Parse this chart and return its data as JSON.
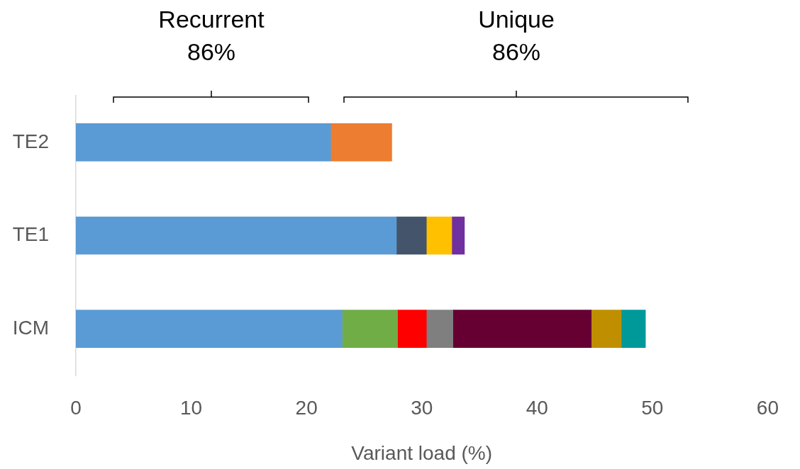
{
  "chart_data": {
    "type": "bar",
    "orientation": "horizontal",
    "stacked": true,
    "xlabel": "Variant load (%)",
    "categories": [
      "TE2",
      "TE1",
      "ICM"
    ],
    "series": [
      {
        "color": "#5b9bd5",
        "values": [
          22.1,
          27.8,
          23.1
        ]
      },
      {
        "color": "#ed7d31",
        "values": [
          5.3,
          null,
          null
        ]
      },
      {
        "color": "#44546a",
        "values": [
          null,
          2.6,
          null
        ]
      },
      {
        "color": "#ffc000",
        "values": [
          null,
          2.2,
          null
        ]
      },
      {
        "color": "#7030a0",
        "values": [
          null,
          1.1,
          null
        ]
      },
      {
        "color": "#70ad47",
        "values": [
          null,
          null,
          4.8
        ]
      },
      {
        "color": "#ff0000",
        "values": [
          null,
          null,
          2.5
        ]
      },
      {
        "color": "#7f7f7f",
        "values": [
          null,
          null,
          2.3
        ]
      },
      {
        "color": "#660033",
        "values": [
          null,
          null,
          12.0
        ]
      },
      {
        "color": "#bf8f00",
        "values": [
          null,
          null,
          2.6
        ]
      },
      {
        "color": "#009999",
        "values": [
          null,
          null,
          2.1
        ]
      }
    ],
    "xlim": [
      0,
      60
    ],
    "xticks": [
      0,
      10,
      20,
      30,
      40,
      50,
      60
    ],
    "grid": false,
    "legend": false,
    "annotations": [
      "Recurrent\n86%",
      "Unique\n86%"
    ]
  }
}
